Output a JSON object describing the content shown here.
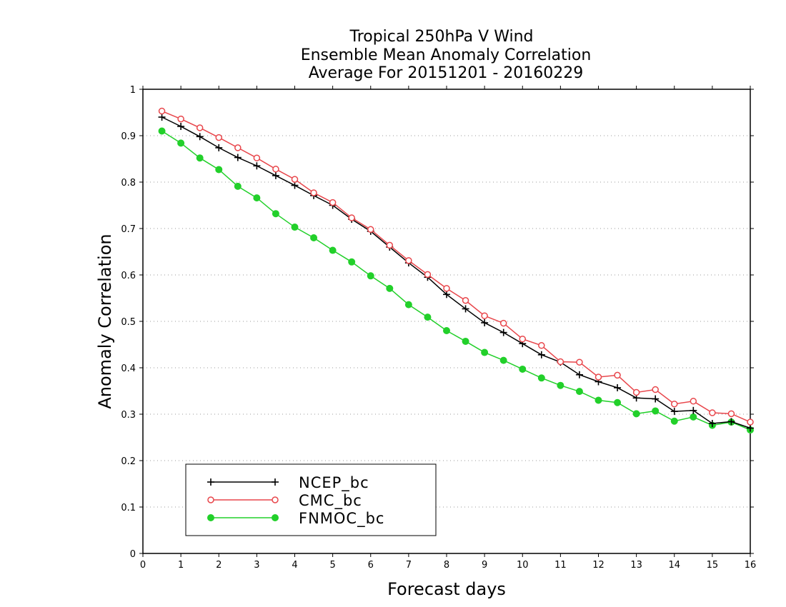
{
  "chart_data": {
    "type": "line",
    "title_lines": [
      "Tropical 250hPa V Wind",
      "Ensemble Mean Anomaly Correlation",
      "Average For 20151201 - 20160229"
    ],
    "xlabel": "Forecast days",
    "ylabel": "Anomaly Correlation",
    "xlim": [
      0,
      16
    ],
    "ylim": [
      0,
      1
    ],
    "x_ticks": [
      "0",
      "1",
      "2",
      "3",
      "4",
      "5",
      "6",
      "7",
      "8",
      "9",
      "10",
      "11",
      "12",
      "13",
      "14",
      "15",
      "16"
    ],
    "y_ticks": [
      "0",
      "0.1",
      "0.2",
      "0.3",
      "0.4",
      "0.5",
      "0.6",
      "0.7",
      "0.8",
      "0.9",
      "1"
    ],
    "grid": "horizontal dotted",
    "legend_position": "bottom-left",
    "x": [
      0.5,
      1,
      1.5,
      2,
      2.5,
      3,
      3.5,
      4,
      4.5,
      5,
      5.5,
      6,
      6.5,
      7,
      7.5,
      8,
      8.5,
      9,
      9.5,
      10,
      10.5,
      11,
      11.5,
      12,
      12.5,
      13,
      13.5,
      14,
      14.5,
      15,
      15.5,
      16
    ],
    "series": [
      {
        "name": "NCEP_bc",
        "color": "#000000",
        "marker": "plus",
        "values": [
          0.94,
          0.92,
          0.898,
          0.874,
          0.853,
          0.835,
          0.814,
          0.793,
          0.771,
          0.75,
          0.72,
          0.694,
          0.66,
          0.626,
          0.595,
          0.558,
          0.527,
          0.497,
          0.476,
          0.452,
          0.428,
          0.412,
          0.385,
          0.37,
          0.357,
          0.335,
          0.333,
          0.306,
          0.308,
          0.28,
          0.284,
          0.27
        ]
      },
      {
        "name": "CMC_bc",
        "color": "#e8464b",
        "marker": "open-circle",
        "values": [
          0.953,
          0.936,
          0.917,
          0.896,
          0.874,
          0.852,
          0.828,
          0.806,
          0.777,
          0.756,
          0.723,
          0.698,
          0.664,
          0.631,
          0.601,
          0.571,
          0.545,
          0.512,
          0.496,
          0.462,
          0.448,
          0.413,
          0.412,
          0.38,
          0.384,
          0.347,
          0.353,
          0.322,
          0.328,
          0.303,
          0.301,
          0.283
        ]
      },
      {
        "name": "FNMOC_bc",
        "color": "#22d02a",
        "marker": "filled-circle",
        "values": [
          0.91,
          0.884,
          0.852,
          0.827,
          0.791,
          0.766,
          0.732,
          0.703,
          0.68,
          0.653,
          0.628,
          0.598,
          0.571,
          0.536,
          0.509,
          0.48,
          0.457,
          0.433,
          0.416,
          0.397,
          0.378,
          0.362,
          0.349,
          0.33,
          0.325,
          0.301,
          0.307,
          0.285,
          0.294,
          0.276,
          0.283,
          0.266
        ]
      }
    ]
  }
}
